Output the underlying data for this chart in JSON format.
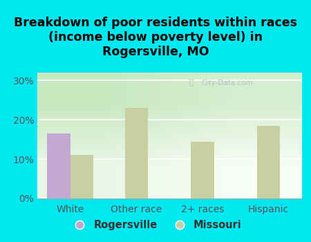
{
  "title": "Breakdown of poor residents within races\n(income below poverty level) in\nRogersville, MO",
  "categories": [
    "White",
    "Other race",
    "2+ races",
    "Hispanic"
  ],
  "rogersville_values": [
    16.5,
    0,
    0,
    0
  ],
  "missouri_values": [
    11.0,
    23.0,
    14.5,
    18.5
  ],
  "rogersville_color": "#c4a8d4",
  "missouri_color": "#c8cfa0",
  "background_color": "#00e8f0",
  "plot_bg_top": "#c8e8c0",
  "plot_bg_bottom": "#f0f8ee",
  "ylim": [
    0,
    32
  ],
  "yticks": [
    0,
    10,
    20,
    30
  ],
  "ytick_labels": [
    "0%",
    "10%",
    "20%",
    "30%"
  ],
  "title_fontsize": 12.5,
  "tick_fontsize": 10,
  "legend_fontsize": 10.5,
  "bar_width": 0.35,
  "watermark": "City-Data.com"
}
